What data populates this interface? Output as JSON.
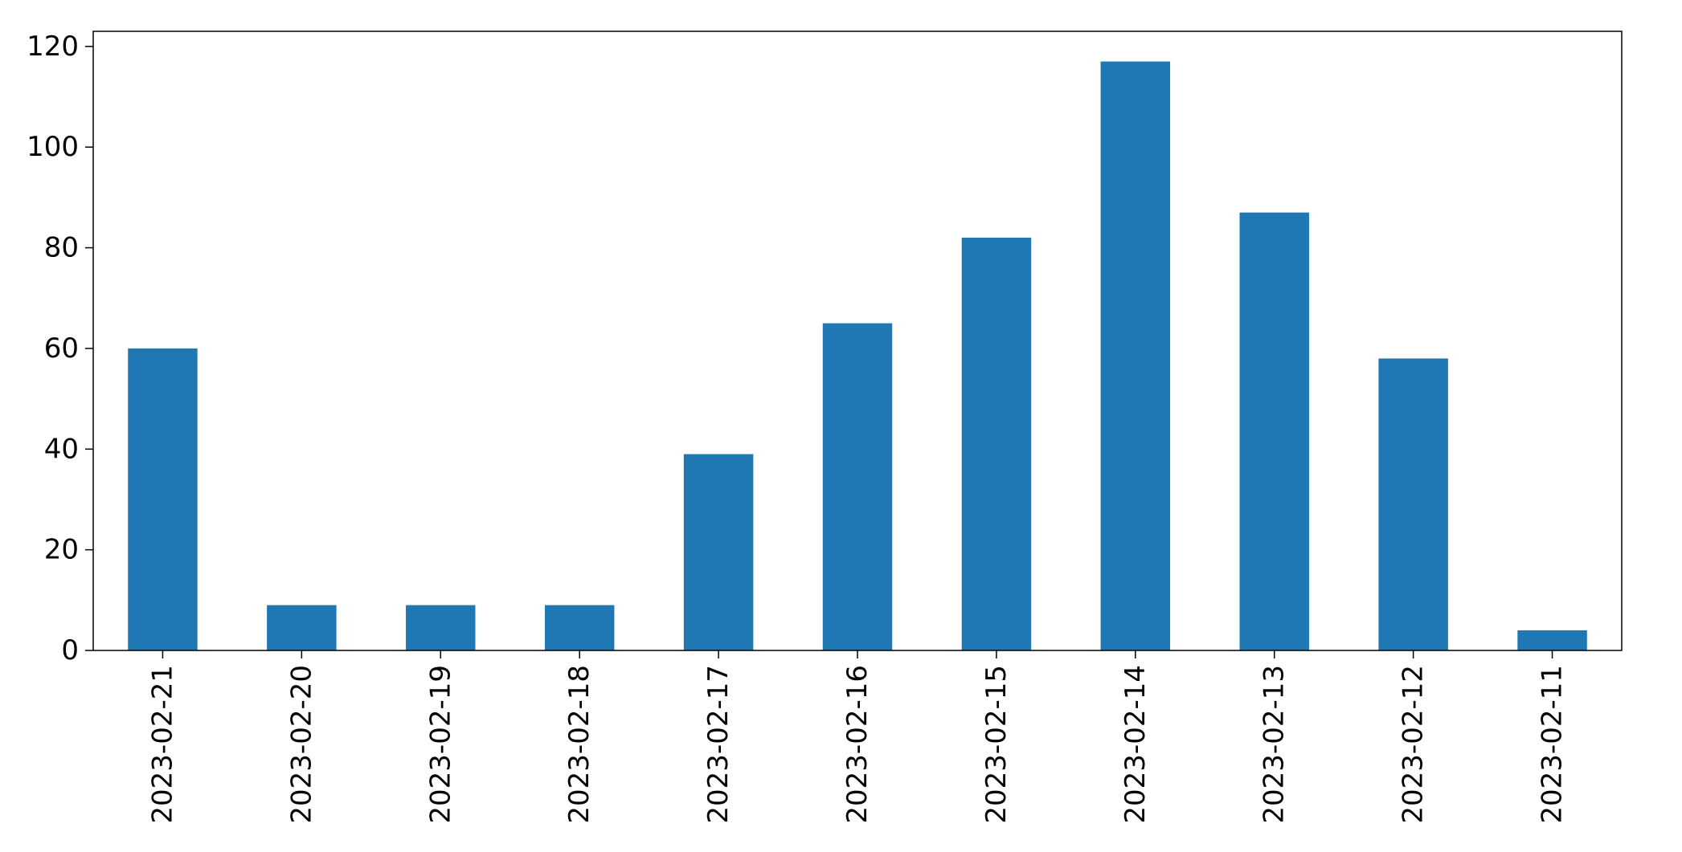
{
  "chart_data": {
    "type": "bar",
    "title": "",
    "xlabel": "",
    "ylabel": "",
    "categories": [
      "2023-02-21",
      "2023-02-20",
      "2023-02-19",
      "2023-02-18",
      "2023-02-17",
      "2023-02-16",
      "2023-02-15",
      "2023-02-14",
      "2023-02-13",
      "2023-02-12",
      "2023-02-11"
    ],
    "values": [
      60,
      9,
      9,
      9,
      39,
      65,
      82,
      117,
      87,
      58,
      4
    ],
    "ylim": [
      0,
      123
    ],
    "yticks": [
      0,
      20,
      40,
      60,
      80,
      100,
      120
    ],
    "grid": false,
    "legend": "none",
    "colors": {
      "bar": "#1f77b4",
      "axis": "#000000",
      "background": "#ffffff"
    }
  }
}
